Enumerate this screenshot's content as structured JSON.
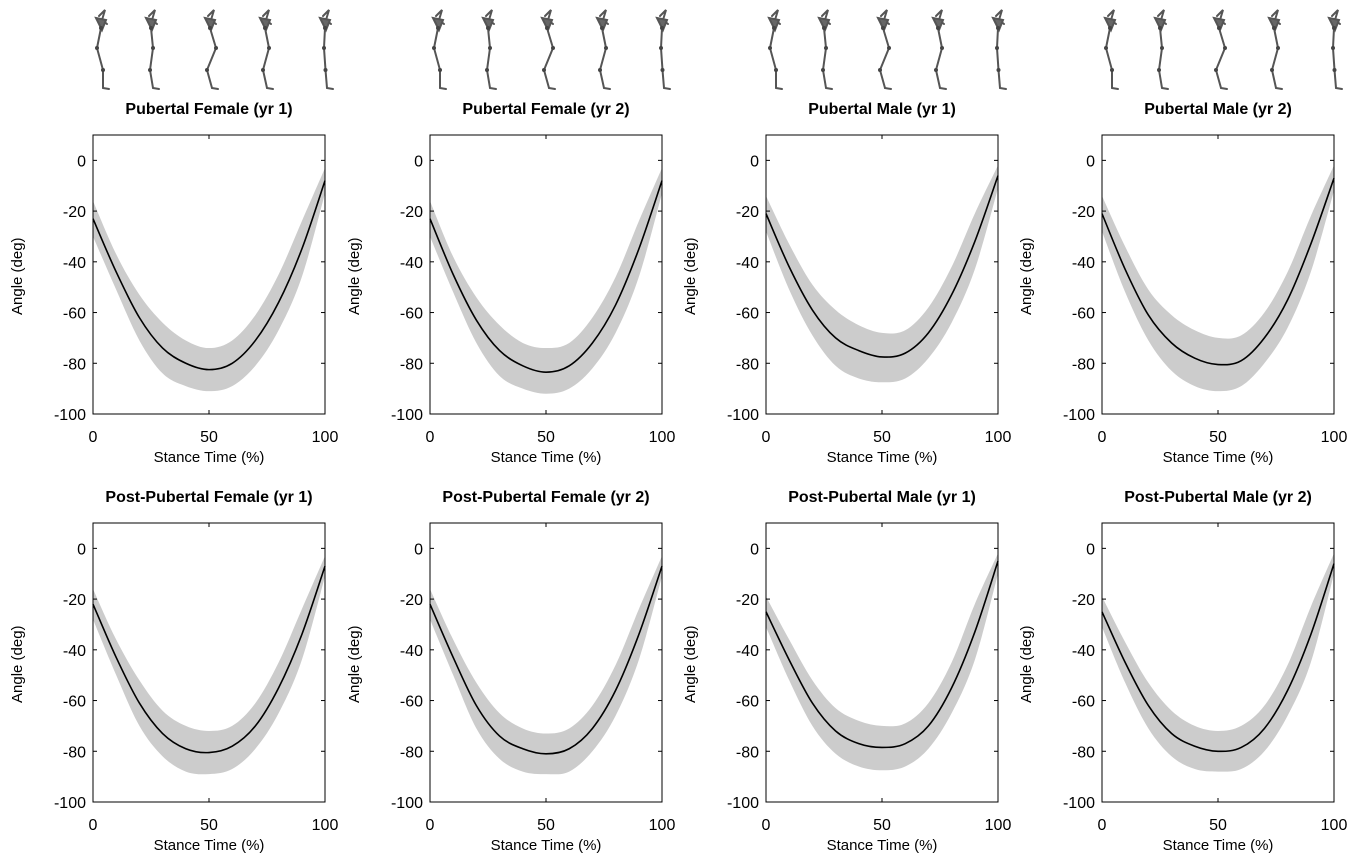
{
  "panels": [
    {
      "title": "Pubertal Female (yr 1)",
      "xlabel": "Stance Time (%)",
      "ylabel": "Angle (deg)"
    },
    {
      "title": "Pubertal Female (yr 2)",
      "xlabel": "Stance Time (%)",
      "ylabel": "Angle (deg)"
    },
    {
      "title": "Pubertal Male (yr 1)",
      "xlabel": "Stance Time (%)",
      "ylabel": "Angle (deg)"
    },
    {
      "title": "Pubertal Male (yr 2)",
      "xlabel": "Stance Time (%)",
      "ylabel": "Angle (deg)"
    },
    {
      "title": "Post-Pubertal Female (yr 1)",
      "xlabel": "Stance Time (%)",
      "ylabel": "Angle (deg)"
    },
    {
      "title": "Post-Pubertal Female (yr 2)",
      "xlabel": "Stance Time (%)",
      "ylabel": "Angle (deg)"
    },
    {
      "title": "Post-Pubertal Male (yr 1)",
      "xlabel": "Stance Time (%)",
      "ylabel": "Angle (deg)"
    },
    {
      "title": "Post-Pubertal Male (yr 2)",
      "xlabel": "Stance Time (%)",
      "ylabel": "Angle (deg)"
    }
  ],
  "colors": {
    "mean_line": "#000000",
    "band": "#cccccc",
    "axes": "#000000"
  },
  "icons": {
    "header": "rat-hindlimb-skeleton-icon"
  },
  "chart_data": [
    {
      "type": "line",
      "title": "Pubertal Female (yr 1)",
      "xlabel": "Stance Time (%)",
      "ylabel": "Angle (deg)",
      "xlim": [
        0,
        100
      ],
      "ylim": [
        -100,
        10
      ],
      "xticks": [
        0,
        50,
        100
      ],
      "yticks": [
        0,
        -20,
        -40,
        -60,
        -80,
        -100
      ],
      "grid": false,
      "x": [
        0,
        10,
        20,
        30,
        40,
        50,
        60,
        70,
        80,
        90,
        100
      ],
      "series": [
        {
          "values": [
            -23,
            -44,
            -62,
            -74,
            -80,
            -82.5,
            -80,
            -71,
            -56,
            -35,
            -8
          ]
        },
        {
          "role": "band-upper",
          "values": [
            -16,
            -37,
            -53,
            -64,
            -71,
            -74,
            -71,
            -61,
            -45,
            -24,
            -3
          ]
        },
        {
          "role": "band-lower",
          "values": [
            -30,
            -51,
            -71,
            -84,
            -89,
            -91,
            -89,
            -81,
            -67,
            -46,
            -13
          ]
        }
      ]
    },
    {
      "type": "line",
      "title": "Pubertal Female (yr 2)",
      "xlabel": "Stance Time (%)",
      "ylabel": "Angle (deg)",
      "xlim": [
        0,
        100
      ],
      "ylim": [
        -100,
        10
      ],
      "xticks": [
        0,
        50,
        100
      ],
      "yticks": [
        0,
        -20,
        -40,
        -60,
        -80,
        -100
      ],
      "grid": false,
      "x": [
        0,
        10,
        20,
        30,
        40,
        50,
        60,
        70,
        80,
        90,
        100
      ],
      "series": [
        {
          "values": [
            -23,
            -45,
            -63,
            -75,
            -81,
            -83.5,
            -81,
            -72,
            -57,
            -35,
            -8
          ]
        },
        {
          "role": "band-upper",
          "values": [
            -16,
            -38,
            -54,
            -65,
            -72,
            -74,
            -72,
            -62,
            -46,
            -24,
            -3
          ]
        },
        {
          "role": "band-lower",
          "values": [
            -30,
            -52,
            -72,
            -85,
            -90,
            -92,
            -90,
            -82,
            -68,
            -46,
            -13
          ]
        }
      ]
    },
    {
      "type": "line",
      "title": "Pubertal Male (yr 1)",
      "xlabel": "Stance Time (%)",
      "ylabel": "Angle (deg)",
      "xlim": [
        0,
        100
      ],
      "ylim": [
        -100,
        10
      ],
      "xticks": [
        0,
        50,
        100
      ],
      "yticks": [
        0,
        -20,
        -40,
        -60,
        -80,
        -100
      ],
      "grid": false,
      "x": [
        0,
        10,
        20,
        30,
        40,
        50,
        60,
        70,
        80,
        90,
        100
      ],
      "series": [
        {
          "values": [
            -21,
            -42,
            -59,
            -70,
            -75,
            -77.5,
            -76,
            -68,
            -53,
            -32,
            -6
          ]
        },
        {
          "role": "band-upper",
          "values": [
            -14,
            -33,
            -49,
            -59,
            -65,
            -68,
            -67,
            -58,
            -42,
            -21,
            -2
          ]
        },
        {
          "role": "band-lower",
          "values": [
            -28,
            -51,
            -69,
            -81,
            -86,
            -87.5,
            -86,
            -78,
            -64,
            -43,
            -11
          ]
        }
      ]
    },
    {
      "type": "line",
      "title": "Pubertal Male (yr 2)",
      "xlabel": "Stance Time (%)",
      "ylabel": "Angle (deg)",
      "xlim": [
        0,
        100
      ],
      "ylim": [
        -100,
        10
      ],
      "xticks": [
        0,
        50,
        100
      ],
      "yticks": [
        0,
        -20,
        -40,
        -60,
        -80,
        -100
      ],
      "grid": false,
      "x": [
        0,
        10,
        20,
        30,
        40,
        50,
        60,
        70,
        80,
        90,
        100
      ],
      "series": [
        {
          "values": [
            -21,
            -43,
            -61,
            -72,
            -78,
            -80.5,
            -79,
            -70,
            -55,
            -33,
            -7
          ]
        },
        {
          "role": "band-upper",
          "values": [
            -14,
            -34,
            -51,
            -61,
            -67,
            -70,
            -69,
            -60,
            -44,
            -22,
            -2
          ]
        },
        {
          "role": "band-lower",
          "values": [
            -28,
            -52,
            -71,
            -83,
            -89,
            -91,
            -89,
            -80,
            -66,
            -44,
            -12
          ]
        }
      ]
    },
    {
      "type": "line",
      "title": "Post-Pubertal Female (yr 1)",
      "xlabel": "Stance Time (%)",
      "ylabel": "Angle (deg)",
      "xlim": [
        0,
        100
      ],
      "ylim": [
        -100,
        10
      ],
      "xticks": [
        0,
        50,
        100
      ],
      "yticks": [
        0,
        -20,
        -40,
        -60,
        -80,
        -100
      ],
      "grid": false,
      "x": [
        0,
        10,
        20,
        30,
        40,
        50,
        60,
        70,
        80,
        90,
        100
      ],
      "series": [
        {
          "values": [
            -22,
            -43,
            -61,
            -73,
            -79,
            -80.5,
            -78,
            -70,
            -55,
            -34,
            -7
          ]
        },
        {
          "role": "band-upper",
          "values": [
            -16,
            -36,
            -52,
            -64,
            -70,
            -72,
            -70,
            -61,
            -45,
            -24,
            -3
          ]
        },
        {
          "role": "band-lower",
          "values": [
            -28,
            -50,
            -70,
            -82,
            -88,
            -89,
            -87,
            -79,
            -65,
            -44,
            -11
          ]
        }
      ]
    },
    {
      "type": "line",
      "title": "Post-Pubertal Female (yr 2)",
      "xlabel": "Stance Time (%)",
      "ylabel": "Angle (deg)",
      "xlim": [
        0,
        100
      ],
      "ylim": [
        -100,
        10
      ],
      "xticks": [
        0,
        50,
        100
      ],
      "yticks": [
        0,
        -20,
        -40,
        -60,
        -80,
        -100
      ],
      "grid": false,
      "x": [
        0,
        10,
        20,
        30,
        40,
        50,
        60,
        70,
        80,
        90,
        100
      ],
      "series": [
        {
          "values": [
            -22,
            -43,
            -62,
            -74,
            -79,
            -81,
            -79,
            -71,
            -56,
            -34,
            -7
          ]
        },
        {
          "role": "band-upper",
          "values": [
            -16,
            -36,
            -53,
            -65,
            -71,
            -73,
            -71,
            -62,
            -46,
            -24,
            -3
          ]
        },
        {
          "role": "band-lower",
          "values": [
            -28,
            -50,
            -71,
            -83,
            -88,
            -89,
            -88,
            -80,
            -66,
            -44,
            -11
          ]
        }
      ]
    },
    {
      "type": "line",
      "title": "Post-Pubertal Male (yr 1)",
      "xlabel": "Stance Time (%)",
      "ylabel": "Angle (deg)",
      "xlim": [
        0,
        100
      ],
      "ylim": [
        -100,
        10
      ],
      "xticks": [
        0,
        50,
        100
      ],
      "yticks": [
        0,
        -20,
        -40,
        -60,
        -80,
        -100
      ],
      "grid": false,
      "x": [
        0,
        10,
        20,
        30,
        40,
        50,
        60,
        70,
        80,
        90,
        100
      ],
      "series": [
        {
          "values": [
            -25,
            -44,
            -61,
            -72,
            -77,
            -78.5,
            -77,
            -70,
            -55,
            -33,
            -5
          ]
        },
        {
          "role": "band-upper",
          "values": [
            -19,
            -36,
            -52,
            -63,
            -68,
            -70,
            -69,
            -61,
            -45,
            -22,
            -2
          ]
        },
        {
          "role": "band-lower",
          "values": [
            -31,
            -52,
            -70,
            -81,
            -86,
            -87.5,
            -86,
            -79,
            -65,
            -44,
            -10
          ]
        }
      ]
    },
    {
      "type": "line",
      "title": "Post-Pubertal Male (yr 2)",
      "xlabel": "Stance Time (%)",
      "ylabel": "Angle (deg)",
      "xlim": [
        0,
        100
      ],
      "ylim": [
        -100,
        10
      ],
      "xticks": [
        0,
        50,
        100
      ],
      "yticks": [
        0,
        -20,
        -40,
        -60,
        -80,
        -100
      ],
      "grid": false,
      "x": [
        0,
        10,
        20,
        30,
        40,
        50,
        60,
        70,
        80,
        90,
        100
      ],
      "series": [
        {
          "values": [
            -25,
            -45,
            -62,
            -73,
            -78,
            -80,
            -78.5,
            -71,
            -56,
            -34,
            -6
          ]
        },
        {
          "role": "band-upper",
          "values": [
            -19,
            -37,
            -53,
            -64,
            -70,
            -72,
            -70,
            -62,
            -46,
            -23,
            -2
          ]
        },
        {
          "role": "band-lower",
          "values": [
            -31,
            -53,
            -71,
            -82,
            -87,
            -88,
            -87,
            -80,
            -66,
            -45,
            -10
          ]
        }
      ]
    }
  ]
}
